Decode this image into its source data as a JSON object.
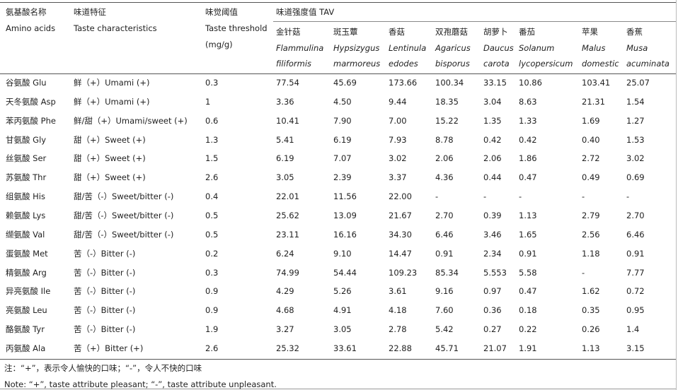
{
  "header": {
    "columns": [
      {
        "cn": "氨基酸名称",
        "en": "Amino acids"
      },
      {
        "cn": "味道特征",
        "en": "Taste characteristics"
      },
      {
        "cn": "味觉阈值",
        "en": "Taste threshold",
        "unit": "(mg/g)"
      }
    ],
    "tav_title": "味道强度值 TAV",
    "species": [
      {
        "cn": "金针菇",
        "latin": [
          "Flammulina",
          "filiformis"
        ]
      },
      {
        "cn": "斑玉蕈",
        "latin": [
          "Hypsizygus",
          "marmoreus"
        ]
      },
      {
        "cn": "香菇",
        "latin": [
          "Lentinula",
          "edodes"
        ]
      },
      {
        "cn": "双孢蘑菇",
        "latin": [
          "Agaricus",
          "bisporus"
        ]
      },
      {
        "cn": "胡萝卜",
        "latin": [
          "Daucus",
          "carota"
        ]
      },
      {
        "cn": "番茄",
        "latin": [
          "Solanum",
          "lycopersicum"
        ]
      },
      {
        "cn": "苹果",
        "latin": [
          "Malus",
          "domestic"
        ]
      },
      {
        "cn": "香蕉",
        "latin": [
          "Musa",
          "acuminata"
        ]
      }
    ]
  },
  "table": {
    "rows": [
      [
        "谷氨酸 Glu",
        "鲜（+）Umami (+)",
        "0.3",
        "77.54",
        "45.69",
        "173.66",
        "100.34",
        "33.15",
        "10.86",
        "103.41",
        "25.07"
      ],
      [
        "天冬氨酸 Asp",
        "鲜（+）Umami (+)",
        "1",
        "3.36",
        "4.50",
        "9.44",
        "18.35",
        "3.04",
        "8.63",
        "21.31",
        "1.54"
      ],
      [
        "苯丙氨酸 Phe",
        "鲜/甜（+）Umami/sweet (+)",
        "0.6",
        "10.41",
        "7.90",
        "7.00",
        "15.22",
        "1.35",
        "1.33",
        "1.69",
        "1.27"
      ],
      [
        "甘氨酸 Gly",
        "甜（+）Sweet (+)",
        "1.3",
        "5.41",
        "6.19",
        "7.93",
        "8.78",
        "0.42",
        "0.42",
        "0.40",
        "1.53"
      ],
      [
        "丝氨酸 Ser",
        "甜（+）Sweet (+)",
        "1.5",
        "6.19",
        "7.07",
        "3.02",
        "2.06",
        "2.06",
        "1.86",
        "2.72",
        "3.02"
      ],
      [
        "苏氨酸 Thr",
        "甜（+）Sweet (+)",
        "2.6",
        "3.05",
        "2.39",
        "3.37",
        "4.36",
        "0.44",
        "0.47",
        "0.49",
        "0.69"
      ],
      [
        "组氨酸 His",
        "甜/苦（-）Sweet/bitter (-)",
        "0.4",
        "22.01",
        "11.56",
        "22.00",
        "-",
        "-",
        "-",
        "-",
        "-"
      ],
      [
        "赖氨酸 Lys",
        "甜/苦（-）Sweet/bitter (-)",
        "0.5",
        "25.62",
        "13.09",
        "21.67",
        "2.70",
        "0.39",
        "1.13",
        "2.79",
        "2.70"
      ],
      [
        "缬氨酸 Val",
        "甜/苦（-）Sweet/bitter (-)",
        "0.5",
        "23.11",
        "16.16",
        "34.30",
        "6.46",
        "3.46",
        "1.65",
        "2.56",
        "6.46"
      ],
      [
        "蛋氨酸 Met",
        "苦（-）Bitter (-)",
        "0.2",
        "6.24",
        "9.10",
        "14.47",
        "0.91",
        "2.34",
        "0.91",
        "1.18",
        "0.91"
      ],
      [
        "精氨酸 Arg",
        "苦（-）Bitter (-)",
        "0.3",
        "74.99",
        "54.44",
        "109.23",
        "85.34",
        "5.553",
        "5.58",
        "-",
        "7.77"
      ],
      [
        "异亮氨酸 Ile",
        "苦（-）Bitter (-)",
        "0.9",
        "4.29",
        "5.26",
        "3.61",
        "9.16",
        "0.97",
        "0.47",
        "1.62",
        "0.72"
      ],
      [
        "亮氨酸 Leu",
        "苦（-）Bitter (-)",
        "0.9",
        "4.68",
        "4.91",
        "4.18",
        "7.60",
        "0.36",
        "0.18",
        "0.35",
        "0.95"
      ],
      [
        "酪氨酸 Tyr",
        "苦（-）Bitter (-)",
        "1.9",
        "3.27",
        "3.05",
        "2.78",
        "5.42",
        "0.27",
        "0.22",
        "0.26",
        "1.4"
      ],
      [
        "丙氨酸 Ala",
        "苦（+）Bitter (+)",
        "2.6",
        "25.32",
        "33.61",
        "22.88",
        "45.71",
        "21.07",
        "1.91",
        "1.13",
        "3.15"
      ]
    ]
  },
  "notes": [
    "注：“+”，表示令人愉快的口味；“-”，令人不快的口味",
    "Note: “+”, taste attribute pleasant; “-”, taste attribute unpleasant."
  ]
}
